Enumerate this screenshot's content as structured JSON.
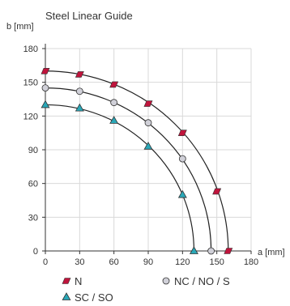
{
  "chart_data": {
    "type": "line",
    "title": "Steel Linear Guide",
    "xlabel": "a [mm]",
    "ylabel": "b [mm]",
    "xlim": [
      0,
      180
    ],
    "ylim": [
      0,
      180
    ],
    "xticks": [
      0,
      30,
      60,
      90,
      120,
      150,
      180
    ],
    "yticks": [
      0,
      30,
      60,
      90,
      120,
      150,
      180
    ],
    "grid": true,
    "series": [
      {
        "name": "N",
        "marker": "parallelogram",
        "color": "#c0143c",
        "x": [
          0,
          30,
          60,
          90,
          120,
          150,
          160
        ],
        "y": [
          160,
          157,
          148,
          131,
          105,
          53,
          0
        ]
      },
      {
        "name": "NC / NO / S",
        "marker": "circle",
        "color": "#d0d0d8",
        "x": [
          0,
          30,
          60,
          90,
          120,
          145
        ],
        "y": [
          145,
          142,
          132,
          114,
          82,
          0
        ]
      },
      {
        "name": "SC / SO",
        "marker": "triangle",
        "color": "#2aa8b8",
        "x": [
          0,
          30,
          60,
          90,
          120,
          130
        ],
        "y": [
          130,
          127,
          116,
          93,
          50,
          0
        ]
      }
    ]
  }
}
